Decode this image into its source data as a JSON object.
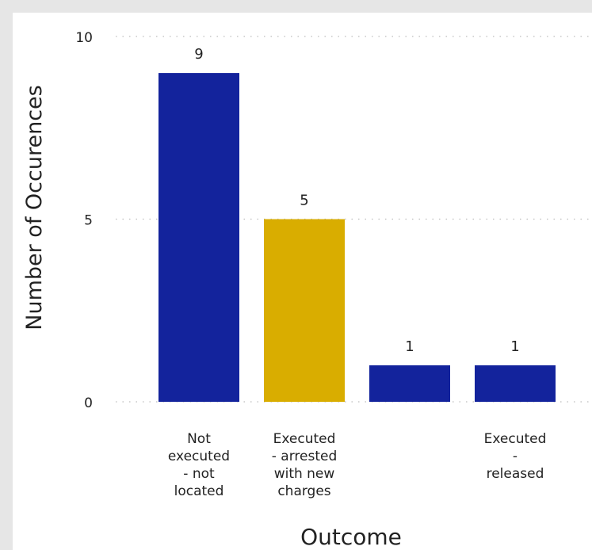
{
  "chart_data": {
    "type": "bar",
    "title": "",
    "xlabel": "Outcome",
    "ylabel": "Number of Occurences",
    "ylim": [
      0,
      10
    ],
    "yticks": [
      0,
      5,
      10
    ],
    "grid": true,
    "categories": [
      [
        "Not",
        "executed",
        "- not",
        "located"
      ],
      [
        "Executed",
        "- arrested",
        "with new",
        "charges"
      ],
      [],
      [
        "Executed",
        "-",
        "released"
      ]
    ],
    "values": [
      9,
      5,
      1,
      1
    ],
    "colors": [
      "#13239c",
      "#d9ad00",
      "#13239c",
      "#13239c"
    ]
  }
}
